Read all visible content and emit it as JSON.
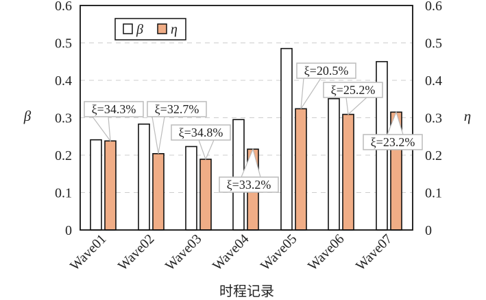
{
  "chart_data": {
    "type": "bar",
    "title": "",
    "xlabel": "时程记录",
    "ylabel": "β",
    "ylabel_right": "η",
    "ylim": [
      0,
      0.6
    ],
    "yticks": [
      "0",
      "0.1",
      "0.2",
      "0.3",
      "0.4",
      "0.5",
      "0.6"
    ],
    "grid": "horizontal dashed",
    "legend_position": "top-left",
    "categories": [
      "Wave01",
      "Wave02",
      "Wave03",
      "Wave04",
      "Wave05",
      "Wave06",
      "Wave07"
    ],
    "series": [
      {
        "name": "β",
        "color": "#ffffff",
        "values": [
          0.241,
          0.283,
          0.223,
          0.295,
          0.485,
          0.351,
          0.45
        ]
      },
      {
        "name": "η",
        "color": "#f0ad86",
        "values": [
          0.238,
          0.204,
          0.189,
          0.216,
          0.324,
          0.309,
          0.315
        ]
      }
    ],
    "annotations": [
      "ξ=34.3%",
      "ξ=32.7%",
      "ξ=34.8%",
      "ξ=33.2%",
      "ξ=20.5%",
      "ξ=25.2%",
      "ξ=23.2%"
    ]
  }
}
